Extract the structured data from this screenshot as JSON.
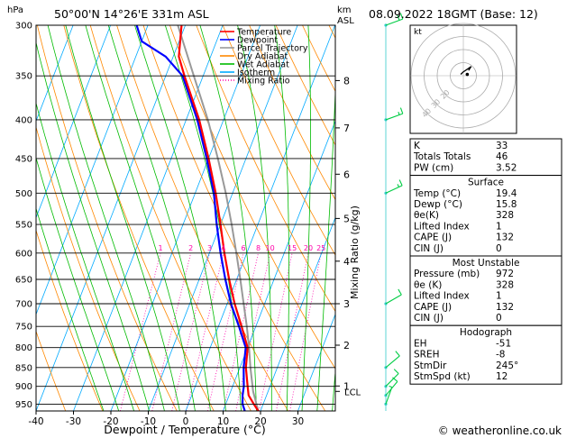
{
  "header": {
    "hpa_label": "hPa",
    "location": "50°00'N  14°26'E  331m  ASL",
    "km_label": "km",
    "asl_label": "ASL",
    "datetime": "08.09.2022  18GMT  (Base: 12)"
  },
  "legend": {
    "items": [
      {
        "label": "Temperature",
        "color": "#ff0000",
        "style": "solid"
      },
      {
        "label": "Dewpoint",
        "color": "#0000ff",
        "style": "solid"
      },
      {
        "label": "Parcel Trajectory",
        "color": "#999999",
        "style": "solid"
      },
      {
        "label": "Dry Adiabat",
        "color": "#ff8800",
        "style": "solid"
      },
      {
        "label": "Wet Adiabat",
        "color": "#00bb00",
        "style": "solid"
      },
      {
        "label": "Isotherm",
        "color": "#00aaff",
        "style": "solid"
      },
      {
        "label": "Mixing Ratio",
        "color": "#ff00aa",
        "style": "dotted"
      }
    ]
  },
  "chart_data": {
    "type": "line",
    "xlabel": "Dewpoint / Temperature (°C)",
    "x_ticks": [
      -40,
      -30,
      -20,
      -10,
      0,
      10,
      20,
      30
    ],
    "xlim": [
      -40,
      40
    ],
    "pressure_levels": [
      300,
      350,
      400,
      450,
      500,
      550,
      600,
      650,
      700,
      750,
      800,
      850,
      900,
      950
    ],
    "plim": [
      300,
      970
    ],
    "skew_per_log_p": 34.0,
    "km_axis": {
      "ticks": [
        1,
        2,
        3,
        4,
        5,
        6,
        7,
        8
      ],
      "pressures": [
        899,
        794,
        700,
        615,
        540,
        472,
        410,
        355
      ],
      "lcl_label": "LCL",
      "lcl_pressure": 914
    },
    "mixing_ratio_axis_label": "Mixing Ratio (g/kg)",
    "mixing_ratio_labels": [
      "1",
      "2",
      "3",
      "4",
      "6",
      "8",
      "10",
      "15",
      "20",
      "25"
    ],
    "mixing_ratios": [
      1,
      2,
      3,
      4,
      6,
      8,
      10,
      15,
      20,
      25
    ],
    "series": [
      {
        "name": "Temperature",
        "color": "#ff0000",
        "points": [
          [
            970,
            19.4
          ],
          [
            950,
            17.5
          ],
          [
            925,
            15.2
          ],
          [
            900,
            14.0
          ],
          [
            850,
            11.6
          ],
          [
            800,
            10.0
          ],
          [
            750,
            6.2
          ],
          [
            700,
            2.0
          ],
          [
            650,
            -2.0
          ],
          [
            600,
            -6.0
          ],
          [
            550,
            -10.0
          ],
          [
            500,
            -14.5
          ],
          [
            450,
            -20.0
          ],
          [
            400,
            -26.5
          ],
          [
            350,
            -35.0
          ],
          [
            330,
            -38.5
          ],
          [
            300,
            -41.0
          ]
        ]
      },
      {
        "name": "Dewpoint",
        "color": "#0000ff",
        "points": [
          [
            970,
            15.8
          ],
          [
            950,
            14.5
          ],
          [
            925,
            13.6
          ],
          [
            900,
            13.0
          ],
          [
            850,
            11.0
          ],
          [
            800,
            9.5
          ],
          [
            750,
            5.5
          ],
          [
            700,
            1.0
          ],
          [
            650,
            -3.0
          ],
          [
            600,
            -7.0
          ],
          [
            550,
            -11.0
          ],
          [
            500,
            -15.0
          ],
          [
            450,
            -20.5
          ],
          [
            400,
            -27.0
          ],
          [
            350,
            -35.5
          ],
          [
            330,
            -42.0
          ],
          [
            315,
            -50.0
          ],
          [
            300,
            -53.0
          ]
        ]
      },
      {
        "name": "Parcel Trajectory",
        "color": "#999999",
        "points": [
          [
            970,
            19.4
          ],
          [
            914,
            16.0
          ],
          [
            850,
            12.8
          ],
          [
            800,
            10.4
          ],
          [
            750,
            7.6
          ],
          [
            700,
            4.4
          ],
          [
            650,
            1.0
          ],
          [
            600,
            -2.8
          ],
          [
            550,
            -7.0
          ],
          [
            500,
            -11.8
          ],
          [
            450,
            -17.5
          ],
          [
            400,
            -24.2
          ],
          [
            350,
            -32.5
          ],
          [
            300,
            -42.0
          ]
        ]
      }
    ]
  },
  "hodograph": {
    "unit_label": "kt",
    "ring_labels": [
      "20",
      "30",
      "40"
    ],
    "points_kt": [
      [
        -2,
        1
      ],
      [
        0,
        3
      ],
      [
        3,
        5
      ],
      [
        6,
        7
      ],
      [
        4,
        4
      ]
    ]
  },
  "wind_barbs": [
    {
      "p": 300,
      "dir": 250,
      "spd": 20
    },
    {
      "p": 400,
      "dir": 250,
      "spd": 15
    },
    {
      "p": 500,
      "dir": 245,
      "spd": 15
    },
    {
      "p": 700,
      "dir": 240,
      "spd": 10
    },
    {
      "p": 850,
      "dir": 230,
      "spd": 10
    },
    {
      "p": 900,
      "dir": 225,
      "spd": 10
    },
    {
      "p": 925,
      "dir": 220,
      "spd": 10
    },
    {
      "p": 950,
      "dir": 200,
      "spd": 5
    }
  ],
  "indices": {
    "top": [
      {
        "label": "K",
        "value": "33"
      },
      {
        "label": "Totals Totals",
        "value": "46"
      },
      {
        "label": "PW (cm)",
        "value": "3.52"
      }
    ],
    "surface_title": "Surface",
    "surface": [
      {
        "label": "Temp (°C)",
        "value": "19.4"
      },
      {
        "label": "Dewp (°C)",
        "value": "15.8"
      },
      {
        "label": "θe(K)",
        "value": "328"
      },
      {
        "label": "Lifted Index",
        "value": "1"
      },
      {
        "label": "CAPE (J)",
        "value": "132"
      },
      {
        "label": "CIN (J)",
        "value": "0"
      }
    ],
    "mu_title": "Most Unstable",
    "mu": [
      {
        "label": "Pressure (mb)",
        "value": "972"
      },
      {
        "label": "θe (K)",
        "value": "328"
      },
      {
        "label": "Lifted Index",
        "value": "1"
      },
      {
        "label": "CAPE (J)",
        "value": "132"
      },
      {
        "label": "CIN (J)",
        "value": "0"
      }
    ],
    "hodo_title": "Hodograph",
    "hodo": [
      {
        "label": "EH",
        "value": "-51"
      },
      {
        "label": "SREH",
        "value": "-8"
      },
      {
        "label": "StmDir",
        "value": "245°"
      },
      {
        "label": "StmSpd (kt)",
        "value": "12"
      }
    ]
  },
  "footer": {
    "copyright": "© weatheronline.co.uk"
  }
}
